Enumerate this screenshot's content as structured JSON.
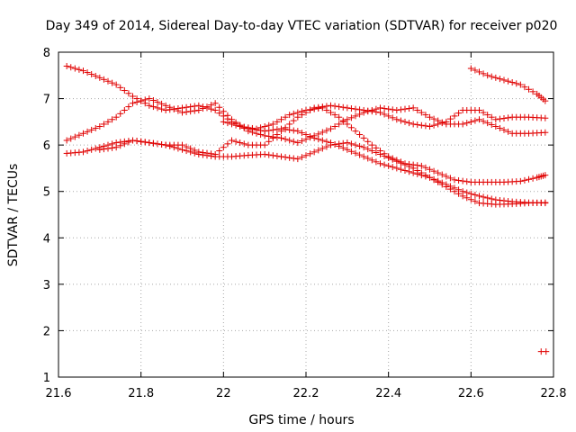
{
  "chart_data": {
    "type": "scatter",
    "title": "Day 349 of 2014, Sidereal Day-to-day VTEC variation (SDTVAR) for receiver p020",
    "xlabel": "GPS time / hours",
    "ylabel": "SDTVAR / TECUs",
    "xlim": [
      21.6,
      22.8
    ],
    "ylim": [
      1,
      8
    ],
    "xticks": [
      21.6,
      21.8,
      22,
      22.2,
      22.4,
      22.6,
      22.8
    ],
    "xtick_labels": [
      "21.6",
      "21.8",
      "22",
      "22.2",
      "22.4",
      "22.6",
      "22.8"
    ],
    "yticks": [
      1,
      2,
      3,
      4,
      5,
      6,
      7,
      8
    ],
    "ytick_labels": [
      "1",
      "2",
      "3",
      "4",
      "5",
      "6",
      "7",
      "8"
    ],
    "grid": true,
    "marker": "+",
    "color": "#e00000",
    "series": [
      {
        "name": "track-a",
        "x": [
          21.62,
          21.66,
          21.7,
          21.74,
          21.78,
          21.82,
          21.86,
          21.9,
          21.94,
          21.98,
          22.02,
          22.06,
          22.1,
          22.14,
          22.18,
          22.22,
          22.26,
          22.3,
          22.34,
          22.38,
          22.42,
          22.46,
          22.5,
          22.54,
          22.58,
          22.62,
          22.66,
          22.7,
          22.74,
          22.78
        ],
        "y": [
          7.7,
          7.6,
          7.45,
          7.3,
          7.05,
          6.85,
          6.75,
          6.8,
          6.85,
          6.75,
          6.5,
          6.35,
          6.3,
          6.35,
          6.3,
          6.15,
          6.05,
          5.9,
          5.75,
          5.6,
          5.5,
          5.4,
          5.3,
          5.15,
          5.0,
          4.9,
          4.82,
          4.78,
          4.76,
          4.75
        ]
      },
      {
        "name": "track-b",
        "x": [
          21.62,
          21.66,
          21.7,
          21.74,
          21.78,
          21.82,
          21.86,
          21.9,
          21.94,
          21.98,
          22.02,
          22.06,
          22.1,
          22.14,
          22.18,
          22.22,
          22.26,
          22.3,
          22.34,
          22.38,
          22.42,
          22.46,
          22.5,
          22.54,
          22.58,
          22.62,
          22.66,
          22.7,
          22.74,
          22.78
        ],
        "y": [
          5.82,
          5.85,
          5.95,
          6.05,
          6.1,
          6.05,
          6.0,
          5.9,
          5.8,
          5.75,
          5.75,
          5.78,
          5.8,
          5.75,
          5.7,
          5.85,
          6.0,
          6.05,
          5.95,
          5.8,
          5.65,
          5.5,
          5.3,
          5.1,
          4.9,
          4.75,
          4.72,
          4.73,
          4.75,
          4.76
        ]
      },
      {
        "name": "track-c",
        "x": [
          21.62,
          21.66,
          21.7,
          21.74,
          21.78,
          21.82,
          21.86,
          21.9,
          21.94,
          21.98,
          22.02,
          22.06,
          22.1,
          22.14,
          22.18,
          22.22,
          22.26,
          22.3,
          22.34,
          22.38,
          22.42,
          22.46,
          22.5,
          22.54,
          22.58,
          22.62,
          22.66,
          22.7,
          22.74,
          22.78
        ],
        "y": [
          6.1,
          6.25,
          6.4,
          6.6,
          6.9,
          7.0,
          6.85,
          6.7,
          6.75,
          6.9,
          6.55,
          6.3,
          6.2,
          6.15,
          6.05,
          6.2,
          6.35,
          6.55,
          6.7,
          6.8,
          6.75,
          6.8,
          6.6,
          6.45,
          6.45,
          6.55,
          6.4,
          6.25,
          6.25,
          6.27
        ]
      },
      {
        "name": "track-d",
        "x": [
          21.7,
          21.74,
          21.78,
          21.82,
          21.86,
          21.9,
          21.94,
          21.98,
          22.02,
          22.06,
          22.1,
          22.14,
          22.18,
          22.22,
          22.26,
          22.3,
          22.34,
          22.38,
          22.42,
          22.46,
          22.5,
          22.54,
          22.58,
          22.62,
          22.66,
          22.7,
          22.74,
          22.78
        ],
        "y": [
          5.9,
          5.95,
          6.1,
          6.05,
          6.0,
          6.0,
          5.85,
          5.8,
          6.1,
          6.0,
          6.0,
          6.3,
          6.6,
          6.8,
          6.85,
          6.8,
          6.75,
          6.7,
          6.55,
          6.45,
          6.4,
          6.5,
          6.75,
          6.75,
          6.55,
          6.6,
          6.6,
          6.58
        ]
      },
      {
        "name": "track-e",
        "x": [
          22.0,
          22.04,
          22.08,
          22.12,
          22.16,
          22.2,
          22.24,
          22.28,
          22.32,
          22.36,
          22.4,
          22.44,
          22.48,
          22.52,
          22.56,
          22.6,
          22.64,
          22.68,
          22.72,
          22.76,
          22.78
        ],
        "y": [
          6.5,
          6.4,
          6.35,
          6.45,
          6.65,
          6.75,
          6.8,
          6.6,
          6.3,
          6.0,
          5.75,
          5.6,
          5.55,
          5.4,
          5.25,
          5.2,
          5.2,
          5.2,
          5.22,
          5.3,
          5.35
        ]
      },
      {
        "name": "track-f",
        "x": [
          22.6,
          22.64,
          22.68,
          22.72,
          22.76,
          22.78
        ],
        "y": [
          7.65,
          7.5,
          7.4,
          7.3,
          7.1,
          6.95
        ]
      },
      {
        "name": "outlier",
        "x": [
          22.77
        ],
        "y": [
          1.55
        ]
      }
    ]
  }
}
